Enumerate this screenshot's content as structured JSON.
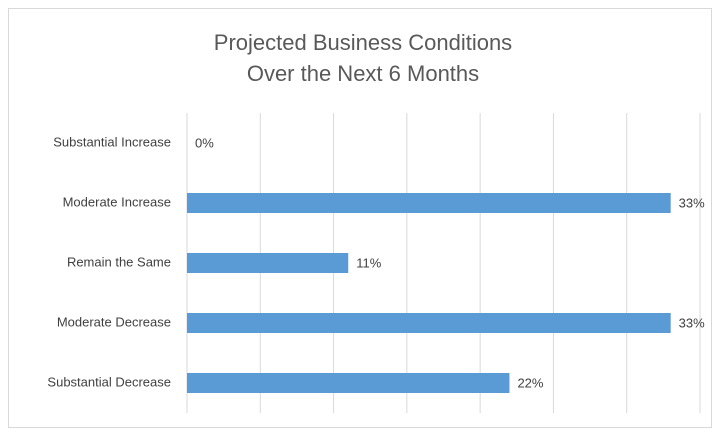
{
  "chart_data": {
    "type": "bar",
    "orientation": "horizontal",
    "title": [
      "Projected Business Conditions",
      "Over the Next 6 Months"
    ],
    "categories": [
      "Substantial Increase",
      "Moderate Increase",
      "Remain the Same",
      "Moderate Decrease",
      "Substantial Decrease"
    ],
    "values": [
      0,
      33,
      11,
      33,
      22
    ],
    "value_labels": [
      "0%",
      "33%",
      "11%",
      "33%",
      "22%"
    ],
    "color": "#5b9bd5",
    "xlim": [
      0,
      35
    ],
    "xticks": [
      0,
      5,
      10,
      15,
      20,
      25,
      30,
      35
    ],
    "grid": true
  }
}
